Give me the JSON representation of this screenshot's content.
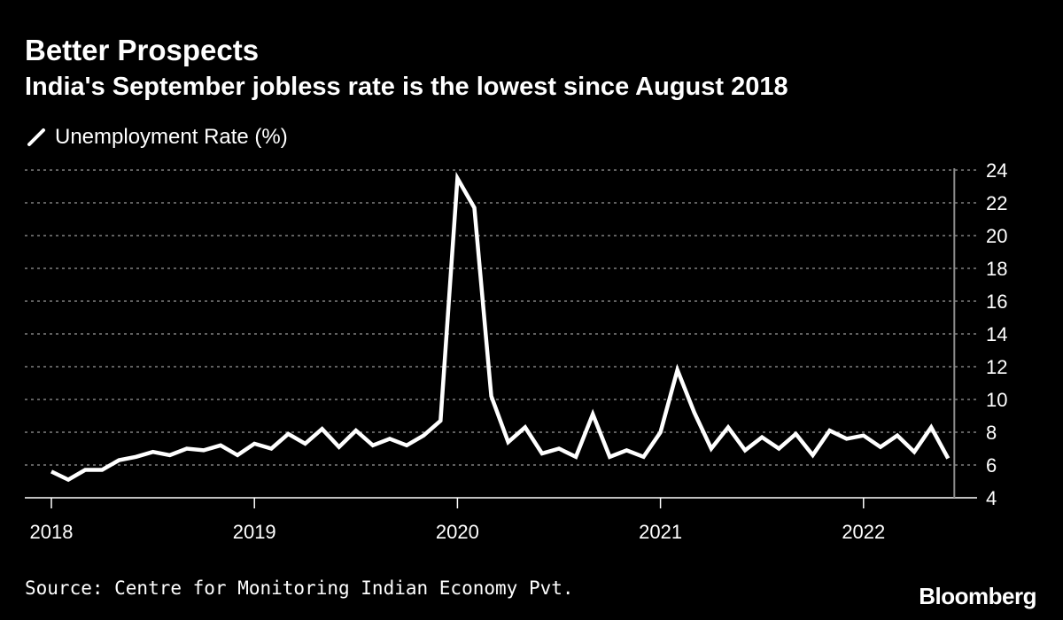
{
  "title": "Better Prospects",
  "subtitle": "India's September jobless rate is the lowest since August 2018",
  "source": "Source: Centre for Monitoring Indian Economy Pvt.",
  "brand": "Bloomberg",
  "colors": {
    "background": "#000000",
    "line": "#ffffff",
    "grid": "#9a9a9a",
    "text": "#ffffff"
  },
  "chart_data": {
    "type": "line",
    "title": "Better Prospects",
    "subtitle": "India's September jobless rate is the lowest since August 2018",
    "xlabel": "",
    "ylabel": "",
    "ylim": [
      4,
      24
    ],
    "yticks": [
      "4",
      "6",
      "8",
      "10",
      "12",
      "14",
      "16",
      "18",
      "20",
      "22",
      "24"
    ],
    "xticks": [
      "2018",
      "2019",
      "2020",
      "2021",
      "2022"
    ],
    "grid": true,
    "legend_position": "top-left",
    "series": [
      {
        "name": "Unemployment Rate (%)",
        "start": "2018-01",
        "values": [
          5.6,
          5.1,
          5.7,
          5.7,
          6.3,
          6.5,
          6.8,
          6.6,
          7.0,
          6.9,
          7.2,
          6.6,
          7.3,
          7.0,
          7.9,
          7.3,
          8.2,
          7.1,
          8.1,
          7.2,
          7.6,
          7.2,
          7.8,
          8.7,
          23.5,
          21.7,
          10.2,
          7.4,
          8.3,
          6.7,
          7.0,
          6.5,
          9.1,
          6.5,
          6.9,
          6.5,
          8.0,
          11.8,
          9.2,
          7.0,
          8.3,
          6.9,
          7.7,
          7.0,
          7.9,
          6.6,
          8.1,
          7.6,
          7.8,
          7.1,
          7.8,
          6.8,
          8.3,
          6.4
        ]
      }
    ]
  }
}
